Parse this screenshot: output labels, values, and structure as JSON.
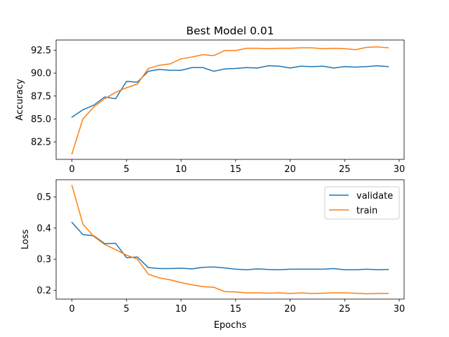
{
  "chart_data": [
    {
      "type": "line",
      "title": "Best Model 0.01",
      "xlabel": "",
      "ylabel": "Accuracy",
      "xlim": [
        -1.45,
        30.45
      ],
      "ylim": [
        80.6,
        93.6
      ],
      "xticks": [
        0,
        5,
        10,
        15,
        20,
        25,
        30
      ],
      "yticks": [
        82.5,
        85.0,
        87.5,
        90.0,
        92.5
      ],
      "ytick_labels": [
        "82.5",
        "85.0",
        "87.5",
        "90.0",
        "92.5"
      ],
      "grid": false,
      "series": [
        {
          "name": "validate",
          "color": "#1f77b4",
          "x": [
            0,
            1,
            2,
            3,
            4,
            5,
            6,
            7,
            8,
            9,
            10,
            11,
            12,
            13,
            14,
            15,
            16,
            17,
            18,
            19,
            20,
            21,
            22,
            23,
            24,
            25,
            26,
            27,
            28,
            29
          ],
          "values": [
            85.2,
            86.0,
            86.5,
            87.4,
            87.2,
            89.1,
            89.0,
            90.2,
            90.4,
            90.3,
            90.3,
            90.6,
            90.6,
            90.2,
            90.45,
            90.5,
            90.6,
            90.55,
            90.8,
            90.75,
            90.55,
            90.75,
            90.7,
            90.75,
            90.55,
            90.7,
            90.65,
            90.7,
            90.8,
            90.7
          ]
        },
        {
          "name": "train",
          "color": "#ff7f0e",
          "x": [
            0,
            1,
            2,
            3,
            4,
            5,
            6,
            7,
            8,
            9,
            10,
            11,
            12,
            13,
            14,
            15,
            16,
            17,
            18,
            19,
            20,
            21,
            22,
            23,
            24,
            25,
            26,
            27,
            28,
            29
          ],
          "values": [
            81.2,
            85.0,
            86.3,
            87.2,
            87.9,
            88.4,
            88.8,
            90.5,
            90.85,
            91.0,
            91.55,
            91.75,
            92.0,
            91.9,
            92.45,
            92.45,
            92.7,
            92.7,
            92.65,
            92.7,
            92.7,
            92.75,
            92.75,
            92.65,
            92.7,
            92.65,
            92.55,
            92.8,
            92.85,
            92.75
          ]
        }
      ]
    },
    {
      "type": "line",
      "title": "",
      "xlabel": "Epochs",
      "ylabel": "Loss",
      "xlim": [
        -1.45,
        30.45
      ],
      "ylim": [
        0.172,
        0.555
      ],
      "xticks": [
        0,
        5,
        10,
        15,
        20,
        25,
        30
      ],
      "yticks": [
        0.2,
        0.3,
        0.4,
        0.5
      ],
      "ytick_labels": [
        "0.2",
        "0.3",
        "0.4",
        "0.5"
      ],
      "grid": false,
      "legend_position": "top-right",
      "series": [
        {
          "name": "validate",
          "color": "#1f77b4",
          "x": [
            0,
            1,
            2,
            3,
            4,
            5,
            6,
            7,
            8,
            9,
            10,
            11,
            12,
            13,
            14,
            15,
            16,
            17,
            18,
            19,
            20,
            21,
            22,
            23,
            24,
            25,
            26,
            27,
            28,
            29
          ],
          "values": [
            0.418,
            0.379,
            0.375,
            0.35,
            0.351,
            0.305,
            0.307,
            0.273,
            0.27,
            0.27,
            0.271,
            0.269,
            0.274,
            0.275,
            0.272,
            0.268,
            0.266,
            0.269,
            0.267,
            0.266,
            0.268,
            0.268,
            0.268,
            0.268,
            0.27,
            0.266,
            0.266,
            0.268,
            0.266,
            0.267
          ]
        },
        {
          "name": "train",
          "color": "#ff7f0e",
          "x": [
            0,
            1,
            2,
            3,
            4,
            5,
            6,
            7,
            8,
            9,
            10,
            11,
            12,
            13,
            14,
            15,
            16,
            17,
            18,
            19,
            20,
            21,
            22,
            23,
            24,
            25,
            26,
            27,
            28,
            29
          ],
          "values": [
            0.537,
            0.413,
            0.373,
            0.347,
            0.331,
            0.313,
            0.3,
            0.252,
            0.24,
            0.234,
            0.225,
            0.218,
            0.212,
            0.21,
            0.196,
            0.195,
            0.192,
            0.192,
            0.191,
            0.192,
            0.19,
            0.192,
            0.19,
            0.191,
            0.192,
            0.192,
            0.191,
            0.189,
            0.19,
            0.19
          ]
        }
      ]
    }
  ]
}
